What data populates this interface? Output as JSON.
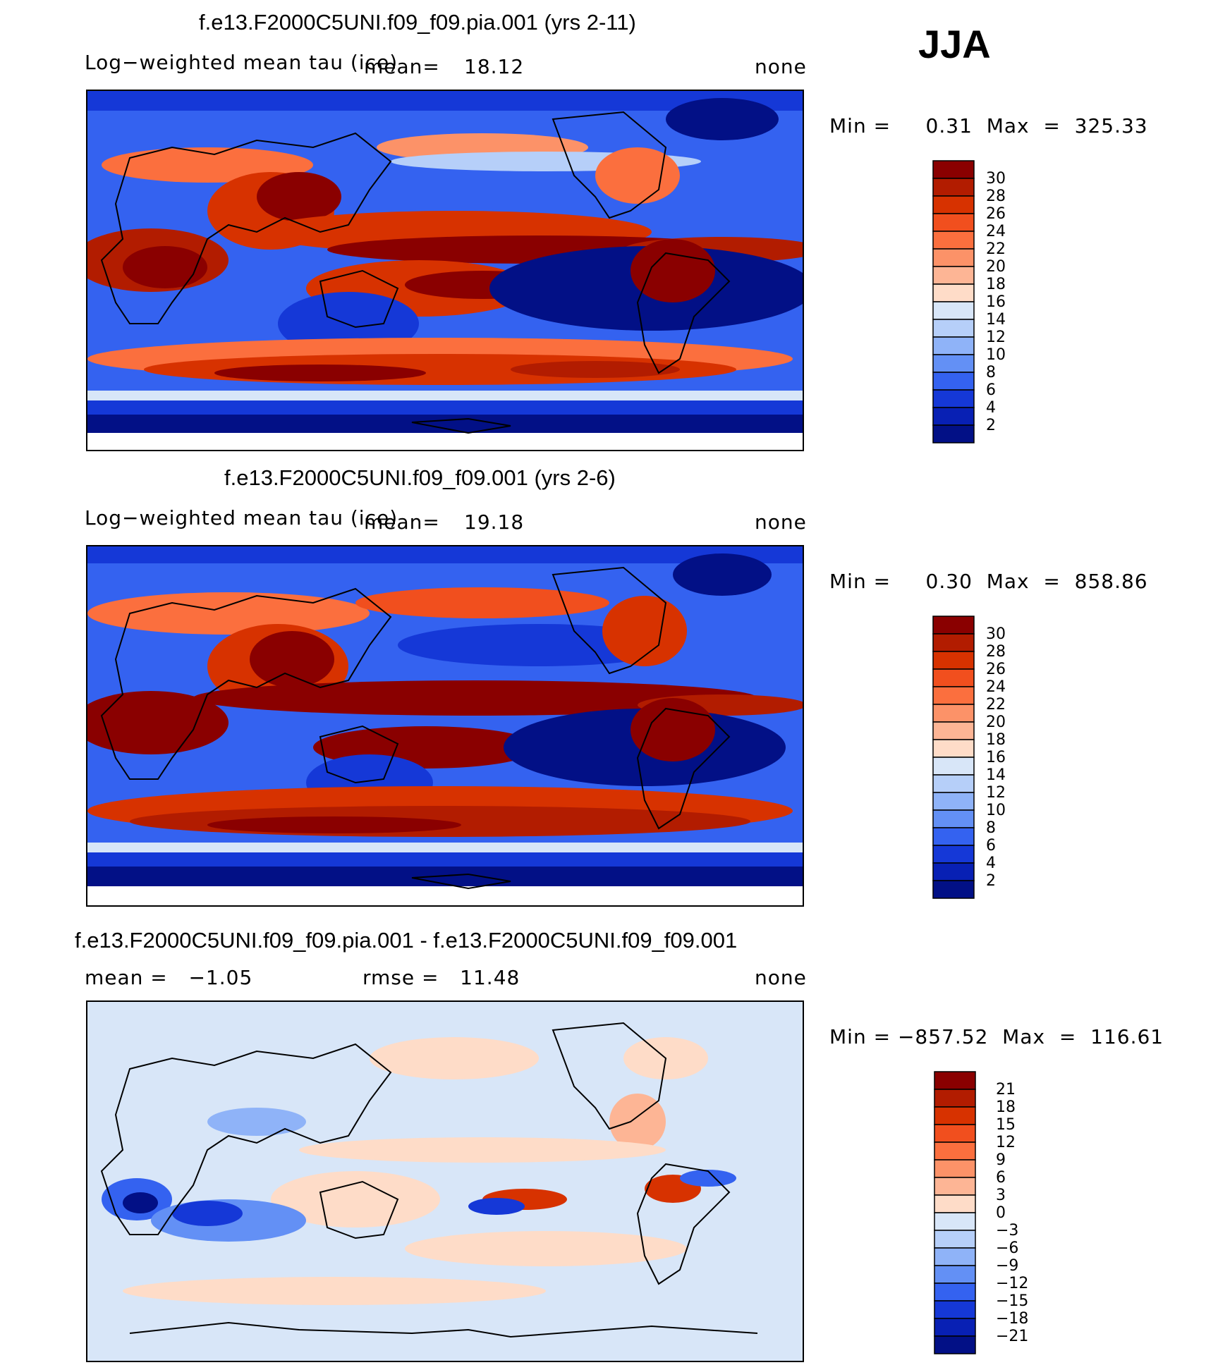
{
  "season": "JJA",
  "panels": [
    {
      "title": "f.e13.F2000C5UNI.f09_f09.pia.001 (yrs 2-11)",
      "left_label": "Log−weighted mean tau (ice)",
      "mean_label": "mean=",
      "mean_value": "18.12",
      "right_label": "none",
      "minmax": "Min =     0.31  Max  =  325.33",
      "colorbar": {
        "labels": [
          "30",
          "28",
          "26",
          "24",
          "22",
          "20",
          "18",
          "16",
          "14",
          "12",
          "10",
          "8",
          "6",
          "4",
          "2"
        ],
        "colors": [
          "#8a0000",
          "#b21c00",
          "#d73200",
          "#f14f1e",
          "#fb6f3e",
          "#fc9268",
          "#fdb595",
          "#fedcc8",
          "#d8e6f8",
          "#b6cff9",
          "#8fb3f8",
          "#6390f5",
          "#3462f0",
          "#1538d7",
          "#0820b4",
          "#021086"
        ]
      }
    },
    {
      "title": "f.e13.F2000C5UNI.f09_f09.001 (yrs 2-6)",
      "left_label": "Log−weighted mean tau (ice)",
      "mean_label": "mean=",
      "mean_value": "19.18",
      "right_label": "none",
      "minmax": "Min =     0.30  Max  =  858.86",
      "colorbar": {
        "labels": [
          "30",
          "28",
          "26",
          "24",
          "22",
          "20",
          "18",
          "16",
          "14",
          "12",
          "10",
          "8",
          "6",
          "4",
          "2"
        ],
        "colors": [
          "#8a0000",
          "#b21c00",
          "#d73200",
          "#f14f1e",
          "#fb6f3e",
          "#fc9268",
          "#fdb595",
          "#fedcc8",
          "#d8e6f8",
          "#b6cff9",
          "#8fb3f8",
          "#6390f5",
          "#3462f0",
          "#1538d7",
          "#0820b4",
          "#021086"
        ]
      }
    },
    {
      "title": "f.e13.F2000C5UNI.f09_f09.pia.001 - f.e13.F2000C5UNI.f09_f09.001",
      "left_label": "mean =   −1.05",
      "rmse_label": "rmse =   11.48",
      "right_label": "none",
      "minmax": "Min = −857.52  Max  =  116.61",
      "colorbar": {
        "labels": [
          "21",
          "18",
          "15",
          "12",
          "9",
          "6",
          "3",
          "0",
          "−3",
          "−6",
          "−9",
          "−12",
          "−15",
          "−18",
          "−21"
        ],
        "colors": [
          "#8a0000",
          "#b21c00",
          "#d73200",
          "#f14f1e",
          "#fb6f3e",
          "#fc9268",
          "#fdb595",
          "#fedcc8",
          "#d8e6f8",
          "#b6cff9",
          "#8fb3f8",
          "#6390f5",
          "#3462f0",
          "#1538d7",
          "#0820b4",
          "#021086"
        ]
      }
    }
  ],
  "chart_data": {
    "type": "heatmap",
    "title": "JJA",
    "panels": [
      {
        "title": "f.e13.F2000C5UNI.f09_f09.pia.001 (yrs 2-11)",
        "variable": "Log−weighted mean tau (ice)",
        "mean": 18.12,
        "min": 0.31,
        "max": 325.33,
        "units": "none",
        "levels": [
          2,
          4,
          6,
          8,
          10,
          12,
          14,
          16,
          18,
          20,
          22,
          24,
          26,
          28,
          30
        ]
      },
      {
        "title": "f.e13.F2000C5UNI.f09_f09.001 (yrs 2-6)",
        "variable": "Log−weighted mean tau (ice)",
        "mean": 19.18,
        "min": 0.3,
        "max": 858.86,
        "units": "none",
        "levels": [
          2,
          4,
          6,
          8,
          10,
          12,
          14,
          16,
          18,
          20,
          22,
          24,
          26,
          28,
          30
        ]
      },
      {
        "title": "f.e13.F2000C5UNI.f09_f09.pia.001 - f.e13.F2000C5UNI.f09_f09.001",
        "mean": -1.05,
        "rmse": 11.48,
        "min": -857.52,
        "max": 116.61,
        "units": "none",
        "levels": [
          -21,
          -18,
          -15,
          -12,
          -9,
          -6,
          -3,
          0,
          3,
          6,
          9,
          12,
          15,
          18,
          21
        ]
      }
    ]
  }
}
